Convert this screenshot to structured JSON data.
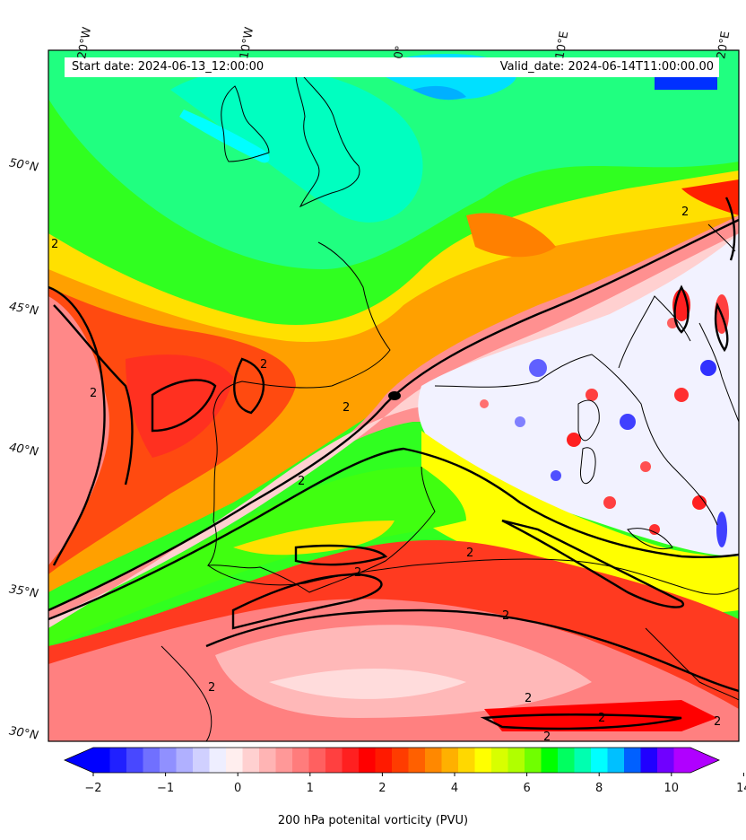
{
  "header": {
    "start_date": "Start date: 2024-06-13_12:00:00",
    "valid_date": "Valid_date: 2024-06-14T11:00:00.00"
  },
  "axes": {
    "lon_labels": [
      "20°W",
      "10°W",
      "0°",
      "10°E",
      "20°E"
    ],
    "lat_labels": [
      "50°N",
      "45°N",
      "40°N",
      "35°N",
      "30°N"
    ]
  },
  "contour_labels": {
    "value": "2"
  },
  "colorbar": {
    "title": "200 hPa potenital vorticity (PVU)",
    "tick_labels": [
      "−2",
      "−1",
      "0",
      "1",
      "2",
      "4",
      "6",
      "8",
      "10",
      "14"
    ],
    "colors": [
      "#0000ff",
      "#2020ff",
      "#4848ff",
      "#7070ff",
      "#9090ff",
      "#b0b0ff",
      "#d0d0ff",
      "#eeeeff",
      "#ffeeee",
      "#ffd0d0",
      "#ffb4b4",
      "#ff9898",
      "#ff7c7c",
      "#ff6060",
      "#ff4040",
      "#ff2020",
      "#ff0000",
      "#ff1a00",
      "#ff3c00",
      "#ff6000",
      "#ff8800",
      "#ffb000",
      "#ffd800",
      "#ffff00",
      "#d8ff00",
      "#b0ff00",
      "#70ff00",
      "#00ff00",
      "#00ff60",
      "#00ffb0",
      "#00ffff",
      "#00c0ff",
      "#0060ff",
      "#2000ff",
      "#7000ff",
      "#b000ff"
    ],
    "extend_low": "#0000ff",
    "extend_high": "#b000ff"
  },
  "colors": {
    "jet_core": "#ff2a1a",
    "subtropical": "#ff3a20",
    "background_green": "#20ff20",
    "coast": "#000000",
    "contour": "#000000"
  }
}
